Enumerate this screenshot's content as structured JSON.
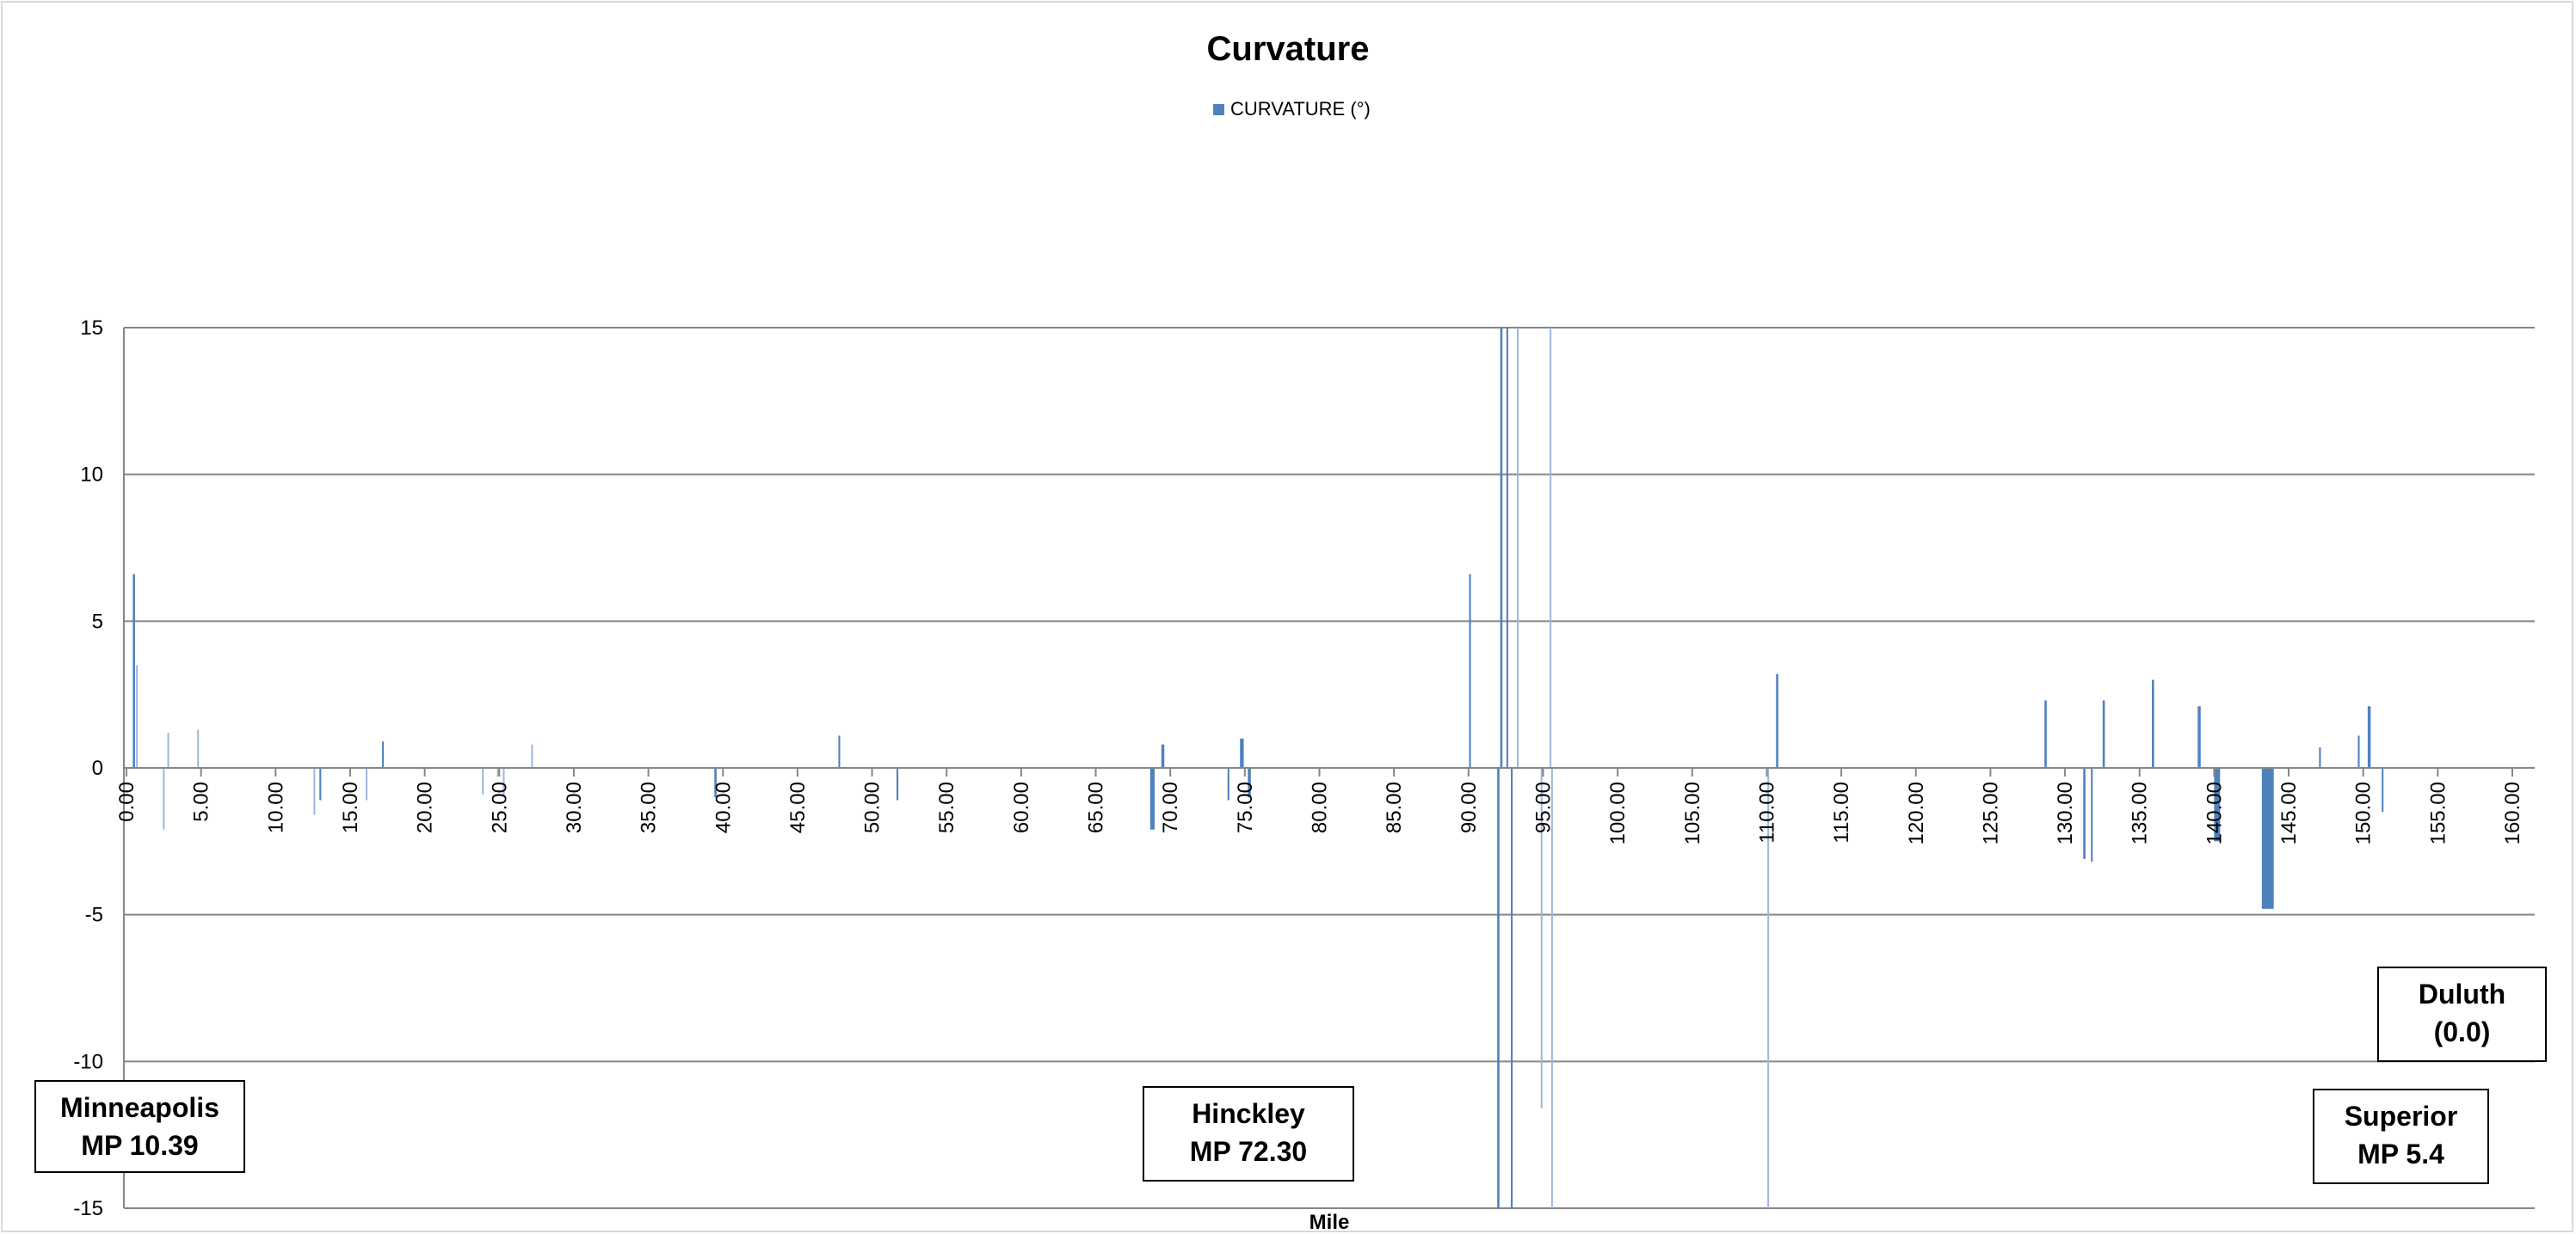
{
  "chart_data": {
    "type": "bar",
    "title": "Curvature",
    "xlabel": "Mile",
    "ylabel": "",
    "legend": {
      "label": "CURVATURE (°)",
      "position": "top",
      "color": "#4F81BD"
    },
    "ylim": [
      -15,
      15
    ],
    "yticks": [
      "15",
      "10",
      "5",
      "0",
      "-5",
      "-10",
      "-15"
    ],
    "xlim": [
      0,
      160
    ],
    "xticks": [
      "0.00",
      "5.00",
      "10.00",
      "15.00",
      "20.00",
      "25.00",
      "30.00",
      "35.00",
      "40.00",
      "45.00",
      "50.00",
      "55.00",
      "60.00",
      "65.00",
      "70.00",
      "75.00",
      "80.00",
      "85.00",
      "90.00",
      "95.00",
      "100.00",
      "105.00",
      "110.00",
      "115.00",
      "120.00",
      "125.00",
      "130.00",
      "135.00",
      "140.00",
      "145.00",
      "150.00",
      "155.00",
      "160.00"
    ],
    "gridlines": true,
    "series": [
      {
        "name": "CURVATURE (°)",
        "color": "#4F81BD",
        "points": [
          {
            "x": 0.5,
            "y": 6.6,
            "w": 0.15
          },
          {
            "x": 0.7,
            "y": 3.5,
            "w": 0.08
          },
          {
            "x": 2.5,
            "y": -2.1,
            "w": 0.06
          },
          {
            "x": 2.8,
            "y": 1.2,
            "w": 0.08
          },
          {
            "x": 4.8,
            "y": 1.3,
            "w": 0.1
          },
          {
            "x": 12.6,
            "y": -1.6,
            "w": 0.06
          },
          {
            "x": 13.0,
            "y": -1.1,
            "w": 0.12
          },
          {
            "x": 16.1,
            "y": -1.1,
            "w": 0.08
          },
          {
            "x": 17.2,
            "y": 0.9,
            "w": 0.12
          },
          {
            "x": 23.9,
            "y": -0.9,
            "w": 0.08
          },
          {
            "x": 24.9,
            "y": -0.3,
            "w": 0.06
          },
          {
            "x": 25.3,
            "y": -1.0,
            "w": 0.08
          },
          {
            "x": 27.2,
            "y": 0.8,
            "w": 0.08
          },
          {
            "x": 39.5,
            "y": -1.0,
            "w": 0.15
          },
          {
            "x": 47.8,
            "y": 1.1,
            "w": 0.12
          },
          {
            "x": 51.7,
            "y": -1.1,
            "w": 0.12
          },
          {
            "x": 68.8,
            "y": -2.1,
            "w": 0.3
          },
          {
            "x": 69.5,
            "y": 0.8,
            "w": 0.2
          },
          {
            "x": 73.9,
            "y": -1.1,
            "w": 0.12
          },
          {
            "x": 74.8,
            "y": 1.0,
            "w": 0.25
          },
          {
            "x": 75.3,
            "y": -1.0,
            "w": 0.2
          },
          {
            "x": 90.1,
            "y": 6.6,
            "w": 0.12
          },
          {
            "x": 92.0,
            "y": -15,
            "w": 0.15
          },
          {
            "x": 92.2,
            "y": 15,
            "w": 0.15
          },
          {
            "x": 92.6,
            "y": 15,
            "w": 0.12
          },
          {
            "x": 92.9,
            "y": -15,
            "w": 0.12
          },
          {
            "x": 93.3,
            "y": 15,
            "w": 0.1
          },
          {
            "x": 94.9,
            "y": -11.6,
            "w": 0.1
          },
          {
            "x": 95.5,
            "y": 15,
            "w": 0.1
          },
          {
            "x": 95.6,
            "y": -15,
            "w": 0.08
          },
          {
            "x": 110.1,
            "y": -15,
            "w": 0.1
          },
          {
            "x": 110.7,
            "y": 3.2,
            "w": 0.15
          },
          {
            "x": 128.7,
            "y": 2.3,
            "w": 0.15
          },
          {
            "x": 131.3,
            "y": -3.1,
            "w": 0.15
          },
          {
            "x": 131.8,
            "y": -3.2,
            "w": 0.12
          },
          {
            "x": 132.6,
            "y": 2.3,
            "w": 0.15
          },
          {
            "x": 135.9,
            "y": 3.0,
            "w": 0.15
          },
          {
            "x": 139.0,
            "y": 2.1,
            "w": 0.2
          },
          {
            "x": 140.2,
            "y": -2.5,
            "w": 0.4
          },
          {
            "x": 143.6,
            "y": -4.8,
            "w": 0.8
          },
          {
            "x": 147.1,
            "y": 0.7,
            "w": 0.12
          },
          {
            "x": 149.7,
            "y": 1.1,
            "w": 0.12
          },
          {
            "x": 150.4,
            "y": 2.1,
            "w": 0.2
          },
          {
            "x": 151.3,
            "y": -1.5,
            "w": 0.12
          }
        ]
      }
    ]
  },
  "annotations": [
    {
      "id": "minneapolis",
      "line1": "Minneapolis",
      "line2": "MP 10.39"
    },
    {
      "id": "hinckley",
      "line1": "Hinckley",
      "line2": "MP 72.30"
    },
    {
      "id": "duluth",
      "line1": "Duluth",
      "line2": "(0.0)"
    },
    {
      "id": "superior",
      "line1": "Superior",
      "line2": "MP 5.4"
    }
  ]
}
